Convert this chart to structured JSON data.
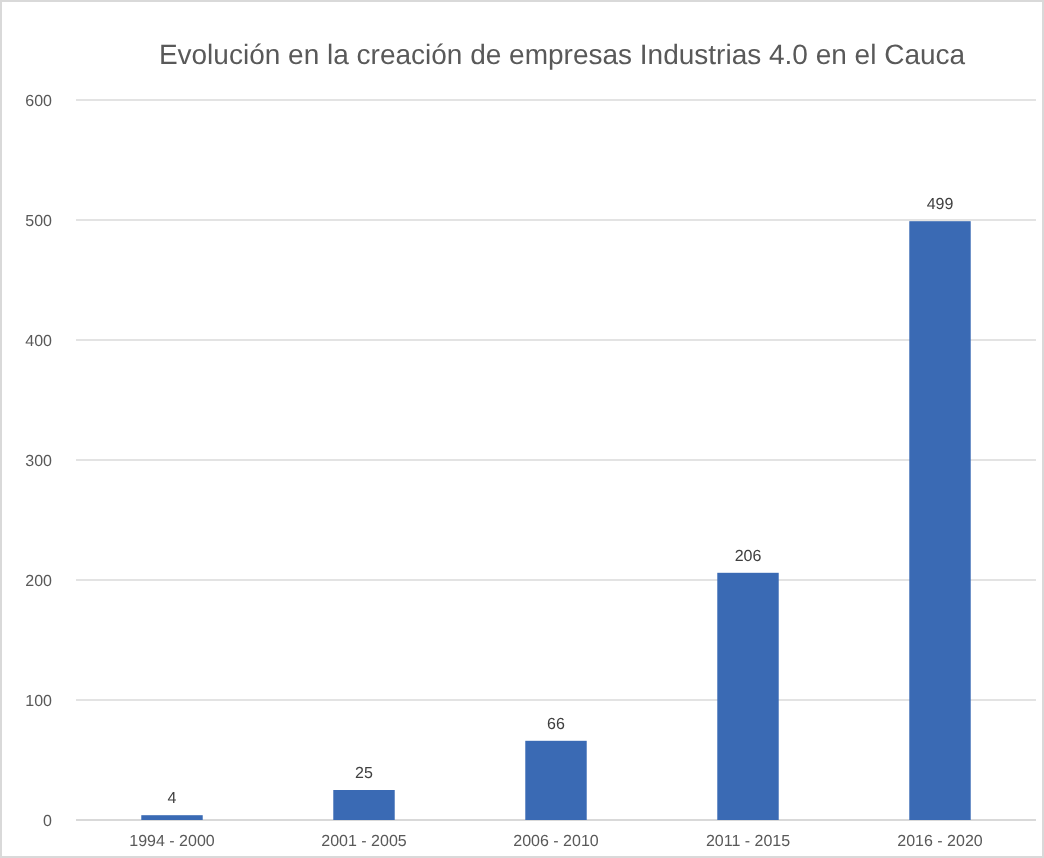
{
  "chart_data": {
    "type": "bar",
    "title": "Evolución en la creación de empresas Industrias 4.0 en el Cauca",
    "categories": [
      "1994 - 2000",
      "2001 - 2005",
      "2006 - 2010",
      "2011 - 2015",
      "2016 - 2020"
    ],
    "values": [
      4,
      25,
      66,
      206,
      499
    ],
    "color": "#3a6ab4",
    "ylim": [
      0,
      600
    ],
    "yticks": [
      0,
      100,
      200,
      300,
      400,
      500,
      600
    ],
    "grid": "y",
    "data_labels": true
  }
}
